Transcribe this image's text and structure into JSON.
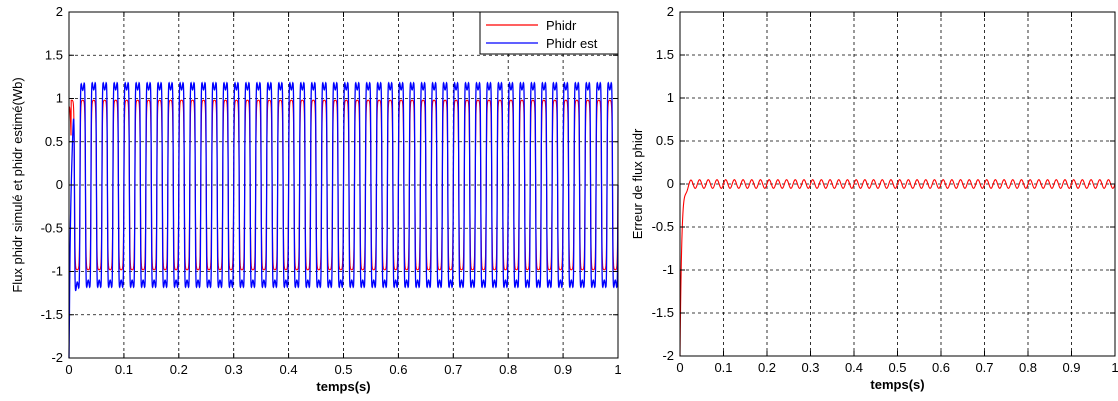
{
  "chart_data": [
    {
      "type": "line",
      "title": "",
      "xlabel": "temps(s)",
      "ylabel": "Flux phidr  simulé et phidr estimé(Wb)",
      "xlim": [
        0,
        1
      ],
      "ylim": [
        -2,
        2
      ],
      "xticks": [
        "0",
        "0.1",
        "0.2",
        "0.3",
        "0.4",
        "0.5",
        "0.6",
        "0.7",
        "0.8",
        "0.9",
        "1"
      ],
      "yticks": [
        "2",
        "1.5",
        "1",
        "0.5",
        "0",
        "-0.5",
        "-1",
        "-1.5",
        "-2"
      ],
      "grid": true,
      "legend": "top-right",
      "series": [
        {
          "name": "Phidr",
          "color": "#ff0000",
          "description": "sinusoid, amplitude ~1.0 Wb, ~50 Hz",
          "amplitude": 1.0,
          "frequency_hz": 50
        },
        {
          "name": "Phidr est",
          "color": "#0000ff",
          "description": "estimate with transient from -2 at t=0, peaks ~±1.18 Wb, ~50 Hz",
          "amplitude": 1.15,
          "frequency_hz": 50,
          "initial_value": -2
        }
      ]
    },
    {
      "type": "line",
      "title": "",
      "xlabel": "temps(s)",
      "ylabel": "Erreur de flux phidr",
      "xlim": [
        0,
        1
      ],
      "ylim": [
        -2,
        2
      ],
      "xticks": [
        "0",
        "0.1",
        "0.2",
        "0.3",
        "0.4",
        "0.5",
        "0.6",
        "0.7",
        "0.8",
        "0.9",
        "1"
      ],
      "yticks": [
        "2",
        "1.5",
        "1",
        "0.5",
        "0",
        "-0.5",
        "-1",
        "-1.5",
        "-2"
      ],
      "grid": true,
      "series": [
        {
          "name": "",
          "color": "#ff0000",
          "description": "error starts at -2, converges by ~0.02 s, small ripple ~±0.05",
          "initial_value": -2,
          "ripple_amplitude": 0.05,
          "frequency_hz": 50
        }
      ]
    }
  ]
}
